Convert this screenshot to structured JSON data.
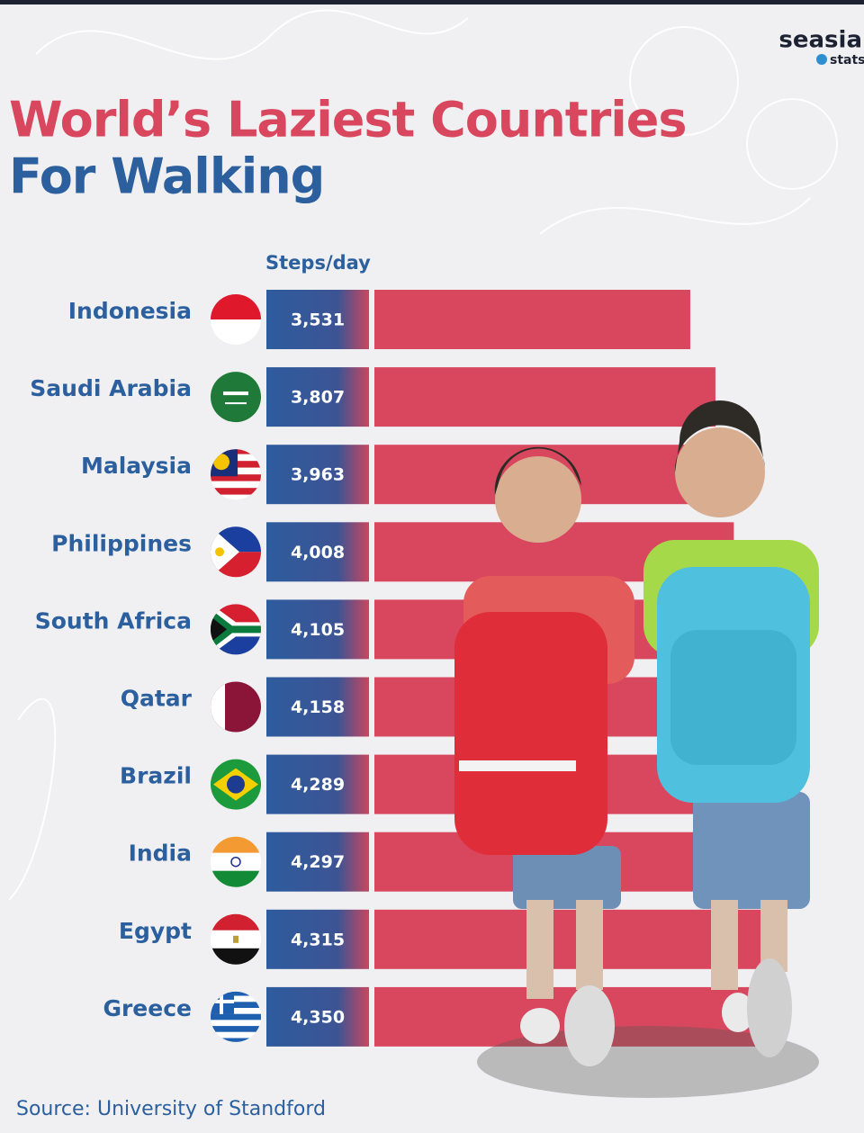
{
  "chart_data": {
    "type": "bar",
    "title_lines": [
      "World’s Laziest Countries",
      "For Walking"
    ],
    "axis_label": "Steps/day",
    "brand": {
      "name": "seasia",
      "tagline": "stats"
    },
    "categories": [
      "Indonesia",
      "Saudi Arabia",
      "Malaysia",
      "Philippines",
      "South Africa",
      "Qatar",
      "Brazil",
      "India",
      "Egypt",
      "Greece"
    ],
    "values": [
      3531,
      3807,
      3963,
      4008,
      4105,
      4158,
      4289,
      4297,
      4315,
      4350
    ],
    "value_labels": [
      "3,531",
      "3,807",
      "3,963",
      "4,008",
      "4,105",
      "4,158",
      "4,289",
      "4,297",
      "4,315",
      "4,350"
    ],
    "color": "#d9475f",
    "source": "Source: University of Standford"
  }
}
